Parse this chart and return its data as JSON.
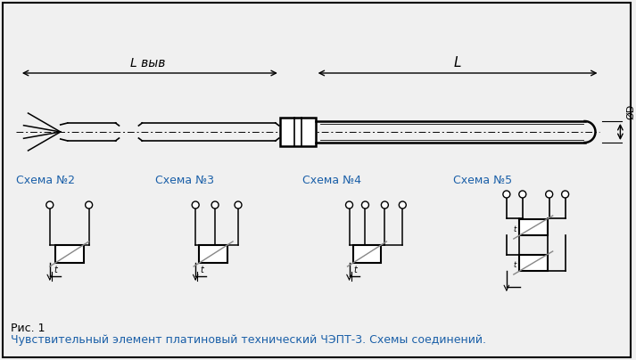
{
  "bg_color": "#f0f0f0",
  "border_color": "#000000",
  "line_color": "#000000",
  "gray_color": "#888888",
  "blue_text_color": "#1a5fa8",
  "title_text": "Чувствительный элемент платиновый технический ЧЭПТ-3. Схемы соединений.",
  "fig1_text": "Рис. 1",
  "schema_labels": [
    "Схема №2",
    "Схема №3",
    "Схема №4",
    "Схема №5"
  ],
  "Lvyv_label": "L выв",
  "L_label": "L",
  "D_label": "ØD"
}
